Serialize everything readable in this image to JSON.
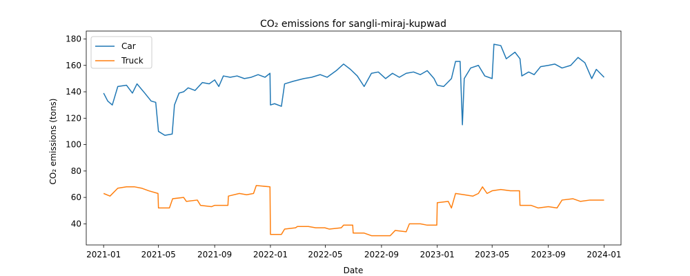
{
  "chart_data": {
    "type": "line",
    "title": "CO₂ emissions for sangli-miraj-kupwad",
    "xlabel": "Date",
    "ylabel": "CO₂ emissions (tons)",
    "xlim": [
      "2020-11-24",
      "2024-02-07"
    ],
    "ylim": [
      24,
      186
    ],
    "x_ticks": [
      "2021-01",
      "2021-05",
      "2021-09",
      "2022-01",
      "2022-05",
      "2022-09",
      "2023-01",
      "2023-05",
      "2023-09",
      "2024-01"
    ],
    "y_ticks": [
      40,
      60,
      80,
      100,
      120,
      140,
      160,
      180
    ],
    "legend_position": "top-left",
    "series": [
      {
        "name": "Car",
        "color": "#1f77b4",
        "points": [
          [
            "2021-01-01",
            139
          ],
          [
            "2021-01-10",
            133
          ],
          [
            "2021-01-20",
            130
          ],
          [
            "2021-02-01",
            144
          ],
          [
            "2021-02-20",
            145
          ],
          [
            "2021-03-05",
            139
          ],
          [
            "2021-03-15",
            146
          ],
          [
            "2021-04-01",
            139
          ],
          [
            "2021-04-15",
            133
          ],
          [
            "2021-04-25",
            132
          ],
          [
            "2021-05-01",
            110
          ],
          [
            "2021-05-15",
            107
          ],
          [
            "2021-05-31",
            108
          ],
          [
            "2021-06-05",
            130
          ],
          [
            "2021-06-15",
            139
          ],
          [
            "2021-06-25",
            140
          ],
          [
            "2021-07-05",
            143
          ],
          [
            "2021-07-20",
            141
          ],
          [
            "2021-08-05",
            147
          ],
          [
            "2021-08-20",
            146
          ],
          [
            "2021-09-01",
            149
          ],
          [
            "2021-09-10",
            144
          ],
          [
            "2021-09-20",
            152
          ],
          [
            "2021-10-05",
            151
          ],
          [
            "2021-10-20",
            152
          ],
          [
            "2021-11-05",
            150
          ],
          [
            "2021-11-20",
            151
          ],
          [
            "2021-12-05",
            153
          ],
          [
            "2021-12-20",
            151
          ],
          [
            "2021-12-31",
            154
          ],
          [
            "2022-01-01",
            130
          ],
          [
            "2022-01-10",
            131
          ],
          [
            "2022-01-25",
            129
          ],
          [
            "2022-02-01",
            146
          ],
          [
            "2022-02-20",
            148
          ],
          [
            "2022-03-15",
            150
          ],
          [
            "2022-04-01",
            151
          ],
          [
            "2022-04-20",
            153
          ],
          [
            "2022-05-05",
            151
          ],
          [
            "2022-05-25",
            156
          ],
          [
            "2022-06-10",
            161
          ],
          [
            "2022-06-25",
            157
          ],
          [
            "2022-07-10",
            152
          ],
          [
            "2022-07-25",
            144
          ],
          [
            "2022-08-10",
            154
          ],
          [
            "2022-08-25",
            155
          ],
          [
            "2022-09-10",
            150
          ],
          [
            "2022-09-25",
            154
          ],
          [
            "2022-10-10",
            151
          ],
          [
            "2022-10-25",
            154
          ],
          [
            "2022-11-10",
            155
          ],
          [
            "2022-11-25",
            153
          ],
          [
            "2022-12-10",
            156
          ],
          [
            "2022-12-25",
            150
          ],
          [
            "2023-01-01",
            145
          ],
          [
            "2023-01-15",
            144
          ],
          [
            "2023-02-01",
            150
          ],
          [
            "2023-02-10",
            163
          ],
          [
            "2023-02-20",
            163
          ],
          [
            "2023-02-25",
            115
          ],
          [
            "2023-03-01",
            150
          ],
          [
            "2023-03-15",
            158
          ],
          [
            "2023-04-01",
            160
          ],
          [
            "2023-04-15",
            152
          ],
          [
            "2023-05-01",
            150
          ],
          [
            "2023-05-05",
            176
          ],
          [
            "2023-05-20",
            175
          ],
          [
            "2023-06-01",
            165
          ],
          [
            "2023-06-20",
            170
          ],
          [
            "2023-07-01",
            165
          ],
          [
            "2023-07-05",
            152
          ],
          [
            "2023-07-20",
            155
          ],
          [
            "2023-08-01",
            153
          ],
          [
            "2023-08-15",
            159
          ],
          [
            "2023-09-01",
            160
          ],
          [
            "2023-09-15",
            161
          ],
          [
            "2023-10-01",
            158
          ],
          [
            "2023-10-20",
            160
          ],
          [
            "2023-11-05",
            166
          ],
          [
            "2023-11-20",
            162
          ],
          [
            "2023-12-05",
            150
          ],
          [
            "2023-12-15",
            157
          ],
          [
            "2024-01-01",
            151
          ]
        ]
      },
      {
        "name": "Truck",
        "color": "#ff7f0e",
        "points": [
          [
            "2021-01-01",
            63
          ],
          [
            "2021-01-15",
            61
          ],
          [
            "2021-02-01",
            67
          ],
          [
            "2021-02-20",
            68
          ],
          [
            "2021-03-10",
            68
          ],
          [
            "2021-03-25",
            67
          ],
          [
            "2021-04-10",
            65
          ],
          [
            "2021-04-30",
            63
          ],
          [
            "2021-05-01",
            52
          ],
          [
            "2021-05-25",
            52
          ],
          [
            "2021-06-01",
            59
          ],
          [
            "2021-06-25",
            60
          ],
          [
            "2021-07-01",
            57
          ],
          [
            "2021-07-25",
            58
          ],
          [
            "2021-08-01",
            54
          ],
          [
            "2021-08-25",
            53
          ],
          [
            "2021-09-01",
            54
          ],
          [
            "2021-09-30",
            54
          ],
          [
            "2021-10-01",
            61
          ],
          [
            "2021-10-25",
            63
          ],
          [
            "2021-11-10",
            62
          ],
          [
            "2021-11-25",
            63
          ],
          [
            "2021-12-01",
            69
          ],
          [
            "2021-12-31",
            68
          ],
          [
            "2022-01-01",
            32
          ],
          [
            "2022-01-25",
            32
          ],
          [
            "2022-02-01",
            36
          ],
          [
            "2022-02-25",
            37
          ],
          [
            "2022-03-01",
            38
          ],
          [
            "2022-03-25",
            38
          ],
          [
            "2022-04-10",
            37
          ],
          [
            "2022-04-30",
            37
          ],
          [
            "2022-05-10",
            36
          ],
          [
            "2022-06-05",
            37
          ],
          [
            "2022-06-10",
            39
          ],
          [
            "2022-06-30",
            39
          ],
          [
            "2022-07-01",
            33
          ],
          [
            "2022-07-25",
            33
          ],
          [
            "2022-08-10",
            31
          ],
          [
            "2022-09-01",
            31
          ],
          [
            "2022-09-20",
            31
          ],
          [
            "2022-10-01",
            35
          ],
          [
            "2022-10-25",
            34
          ],
          [
            "2022-11-01",
            40
          ],
          [
            "2022-11-25",
            40
          ],
          [
            "2022-12-10",
            39
          ],
          [
            "2022-12-31",
            39
          ],
          [
            "2023-01-01",
            56
          ],
          [
            "2023-01-25",
            57
          ],
          [
            "2023-02-01",
            52
          ],
          [
            "2023-02-10",
            63
          ],
          [
            "2023-03-01",
            62
          ],
          [
            "2023-03-20",
            61
          ],
          [
            "2023-04-01",
            63
          ],
          [
            "2023-04-10",
            68
          ],
          [
            "2023-04-20",
            63
          ],
          [
            "2023-05-01",
            65
          ],
          [
            "2023-05-20",
            66
          ],
          [
            "2023-06-10",
            65
          ],
          [
            "2023-06-30",
            65
          ],
          [
            "2023-07-01",
            54
          ],
          [
            "2023-07-25",
            54
          ],
          [
            "2023-08-10",
            52
          ],
          [
            "2023-09-01",
            53
          ],
          [
            "2023-09-20",
            52
          ],
          [
            "2023-10-01",
            58
          ],
          [
            "2023-10-25",
            59
          ],
          [
            "2023-11-10",
            57
          ],
          [
            "2023-12-01",
            58
          ],
          [
            "2023-12-20",
            58
          ],
          [
            "2024-01-01",
            58
          ]
        ]
      }
    ]
  }
}
